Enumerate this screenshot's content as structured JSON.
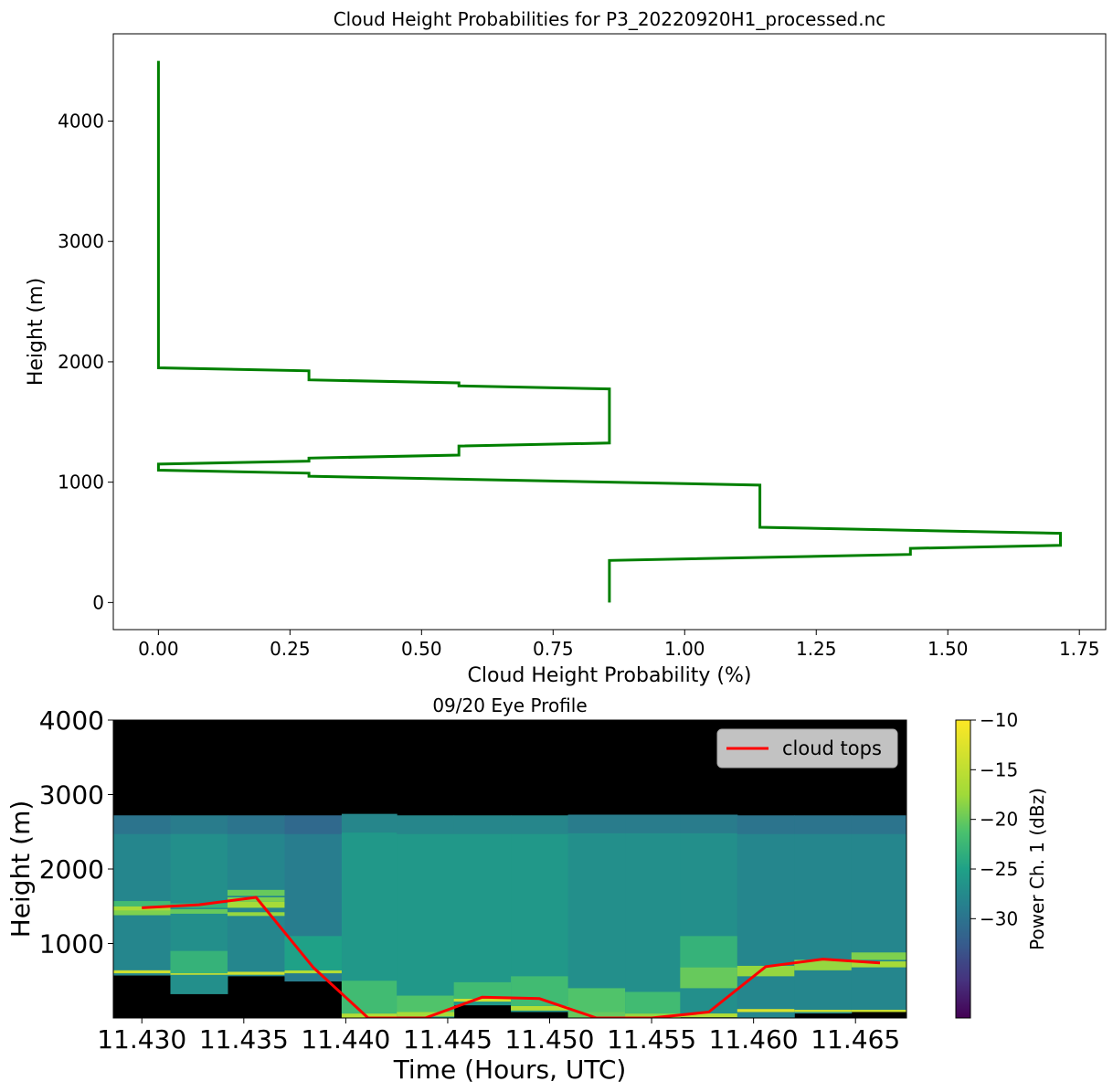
{
  "chart_data": [
    {
      "type": "line",
      "title": "Cloud Height Probabilities for P3_20220920H1_processed.nc",
      "xlabel": "Cloud Height Probability (%)",
      "ylabel": "Height (m)",
      "xlim": [
        -0.0857,
        1.8
      ],
      "ylim": [
        -225,
        4725
      ],
      "xticks": [
        "0.00",
        "0.25",
        "0.50",
        "0.75",
        "1.00",
        "1.25",
        "1.50",
        "1.75"
      ],
      "yticks": [
        "0",
        "1000",
        "2000",
        "3000",
        "4000"
      ],
      "grid": false,
      "series": [
        {
          "color": "#008000",
          "points": [
            [
              0.857,
              0
            ],
            [
              0.857,
              350
            ],
            [
              1.429,
              400
            ],
            [
              1.429,
              450
            ],
            [
              1.714,
              475
            ],
            [
              1.714,
              575
            ],
            [
              1.143,
              625
            ],
            [
              1.143,
              975
            ],
            [
              0.286,
              1050
            ],
            [
              0.286,
              1075
            ],
            [
              0.0,
              1100
            ],
            [
              0.0,
              1150
            ],
            [
              0.286,
              1175
            ],
            [
              0.286,
              1200
            ],
            [
              0.571,
              1225
            ],
            [
              0.571,
              1300
            ],
            [
              0.857,
              1325
            ],
            [
              0.857,
              1775
            ],
            [
              0.571,
              1800
            ],
            [
              0.571,
              1825
            ],
            [
              0.286,
              1850
            ],
            [
              0.286,
              1925
            ],
            [
              0.0,
              1950
            ],
            [
              0.0,
              4500
            ]
          ]
        }
      ]
    },
    {
      "type": "heatmap",
      "title": "09/20 Eye Profile",
      "xlabel": "Time (Hours, UTC)",
      "ylabel": "Height (m)",
      "xlim": [
        11.4286,
        11.4675
      ],
      "ylim": [
        0,
        4000
      ],
      "xticks": [
        "11.430",
        "11.435",
        "11.440",
        "11.445",
        "11.450",
        "11.455",
        "11.460",
        "11.465"
      ],
      "yticks": [
        "1000",
        "2000",
        "3000",
        "4000"
      ],
      "colorbar": {
        "label": "Power Ch. 1 (dBz)",
        "range": [
          -40,
          -10
        ],
        "ticks": [
          "−10",
          "−15",
          "−20",
          "−25",
          "−30"
        ],
        "colormap": "viridis"
      },
      "legend": {
        "position": "top-right",
        "entries": [
          "cloud tops"
        ]
      },
      "columns": [
        {
          "x0": 11.4286,
          "x1": 11.4314,
          "bottom": 570,
          "top": 2720,
          "base_dbz": -28,
          "bands": [
            [
              600,
              640,
              -14
            ],
            [
              1380,
              1440,
              -19
            ],
            [
              1440,
              1500,
              -17
            ],
            [
              1500,
              1570,
              -22
            ]
          ]
        },
        {
          "x0": 11.4314,
          "x1": 11.4342,
          "bottom": 320,
          "top": 2720,
          "base_dbz": -27,
          "bands": [
            [
              580,
              620,
              -14
            ],
            [
              600,
              900,
              -23
            ],
            [
              1400,
              1460,
              -20
            ],
            [
              1480,
              1540,
              -23
            ]
          ]
        },
        {
          "x0": 11.4342,
          "x1": 11.437,
          "bottom": 560,
          "top": 2720,
          "base_dbz": -28,
          "bands": [
            [
              580,
              620,
              -14
            ],
            [
              1370,
              1420,
              -18
            ],
            [
              1480,
              1560,
              -17
            ],
            [
              1560,
              1620,
              -19
            ],
            [
              1640,
              1720,
              -20
            ]
          ]
        },
        {
          "x0": 11.437,
          "x1": 11.4398,
          "bottom": 490,
          "top": 2720,
          "base_dbz": -29,
          "bands": [
            [
              600,
              640,
              -16
            ],
            [
              640,
              1100,
              -25
            ]
          ]
        },
        {
          "x0": 11.4398,
          "x1": 11.4425,
          "bottom": 0,
          "top": 2740,
          "base_dbz": -26,
          "bands": [
            [
              0,
              60,
              -16
            ],
            [
              60,
              500,
              -22
            ]
          ]
        },
        {
          "x0": 11.4425,
          "x1": 11.4453,
          "bottom": 0,
          "top": 2720,
          "base_dbz": -26,
          "bands": [
            [
              20,
              80,
              -17
            ],
            [
              80,
              300,
              -21
            ]
          ]
        },
        {
          "x0": 11.4453,
          "x1": 11.4481,
          "bottom": 170,
          "top": 2720,
          "base_dbz": -26,
          "bands": [
            [
              220,
              260,
              -14
            ],
            [
              260,
              480,
              -22
            ]
          ]
        },
        {
          "x0": 11.4481,
          "x1": 11.4509,
          "bottom": 80,
          "top": 2720,
          "base_dbz": -26,
          "bands": [
            [
              100,
              160,
              -16
            ],
            [
              160,
              560,
              -22
            ]
          ]
        },
        {
          "x0": 11.4509,
          "x1": 11.4537,
          "bottom": 0,
          "top": 2730,
          "base_dbz": -27,
          "bands": [
            [
              0,
              80,
              -20
            ],
            [
              80,
              400,
              -21
            ]
          ]
        },
        {
          "x0": 11.4537,
          "x1": 11.4564,
          "bottom": 0,
          "top": 2730,
          "base_dbz": -27,
          "bands": [
            [
              0,
              60,
              -18
            ],
            [
              60,
              350,
              -22
            ]
          ]
        },
        {
          "x0": 11.4564,
          "x1": 11.4592,
          "bottom": 10,
          "top": 2730,
          "base_dbz": -27,
          "bands": [
            [
              10,
              60,
              -16
            ],
            [
              400,
              680,
              -20
            ],
            [
              680,
              1100,
              -23
            ]
          ]
        },
        {
          "x0": 11.4592,
          "x1": 11.462,
          "bottom": 0,
          "top": 2720,
          "base_dbz": -28,
          "bands": [
            [
              80,
              120,
              -13
            ],
            [
              560,
              700,
              -18
            ]
          ]
        },
        {
          "x0": 11.462,
          "x1": 11.4648,
          "bottom": 60,
          "top": 2720,
          "base_dbz": -28,
          "bands": [
            [
              80,
              110,
              -14
            ],
            [
              640,
              780,
              -18
            ]
          ]
        },
        {
          "x0": 11.4648,
          "x1": 11.4675,
          "bottom": 80,
          "top": 2720,
          "base_dbz": -28,
          "bands": [
            [
              80,
              110,
              -14
            ],
            [
              680,
              760,
              -17
            ],
            [
              780,
              880,
              -19
            ]
          ]
        }
      ],
      "series": [
        {
          "name": "cloud tops",
          "color": "#ff0000",
          "x": [
            11.43,
            11.4328,
            11.4356,
            11.4384,
            11.4411,
            11.4439,
            11.4467,
            11.4495,
            11.4523,
            11.455,
            11.4578,
            11.4606,
            11.4634,
            11.4662
          ],
          "y": [
            1480,
            1520,
            1620,
            680,
            0,
            0,
            280,
            260,
            0,
            0,
            80,
            690,
            790,
            740
          ]
        }
      ]
    }
  ]
}
